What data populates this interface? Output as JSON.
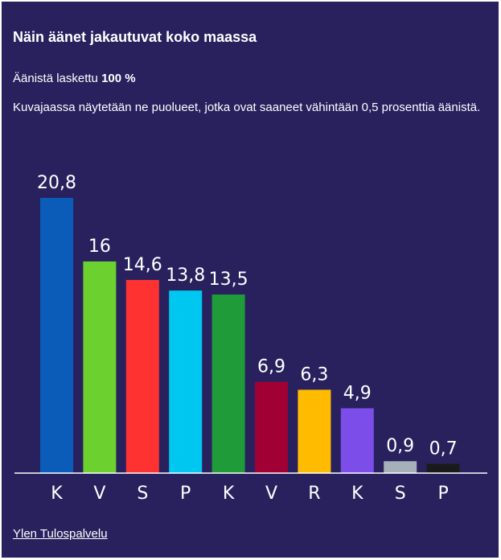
{
  "title": "Näin äänet jakautuvat koko maassa",
  "counted_label": "Äänistä laskettu",
  "counted_value": "100 %",
  "note": "Kuvajaassa näytetään ne puolueet, jotka ovat saaneet vähintään 0,5 prosenttia äänistä.",
  "source_link": "Ylen Tulospalvelu",
  "colors": {
    "background": "#28215e",
    "axis": "#ffffff"
  },
  "chart_data": {
    "type": "bar",
    "categories": [
      "K",
      "V",
      "S",
      "P",
      "K",
      "V",
      "R",
      "K",
      "S",
      "P"
    ],
    "values": [
      20.8,
      16,
      14.6,
      13.8,
      13.5,
      6.9,
      6.3,
      4.9,
      0.9,
      0.7
    ],
    "value_labels": [
      "20,8",
      "16",
      "14,6",
      "13,8",
      "13,5",
      "6,9",
      "6,3",
      "4,9",
      "0,9",
      "0,7"
    ],
    "colors": [
      "#0b5cb8",
      "#6cd02f",
      "#ff3232",
      "#00c7ef",
      "#1f9b3a",
      "#a10034",
      "#ffbb00",
      "#7c4de8",
      "#a6b0b8",
      "#1a1a1a"
    ],
    "ylim": [
      0,
      20.8
    ],
    "grid": false
  }
}
